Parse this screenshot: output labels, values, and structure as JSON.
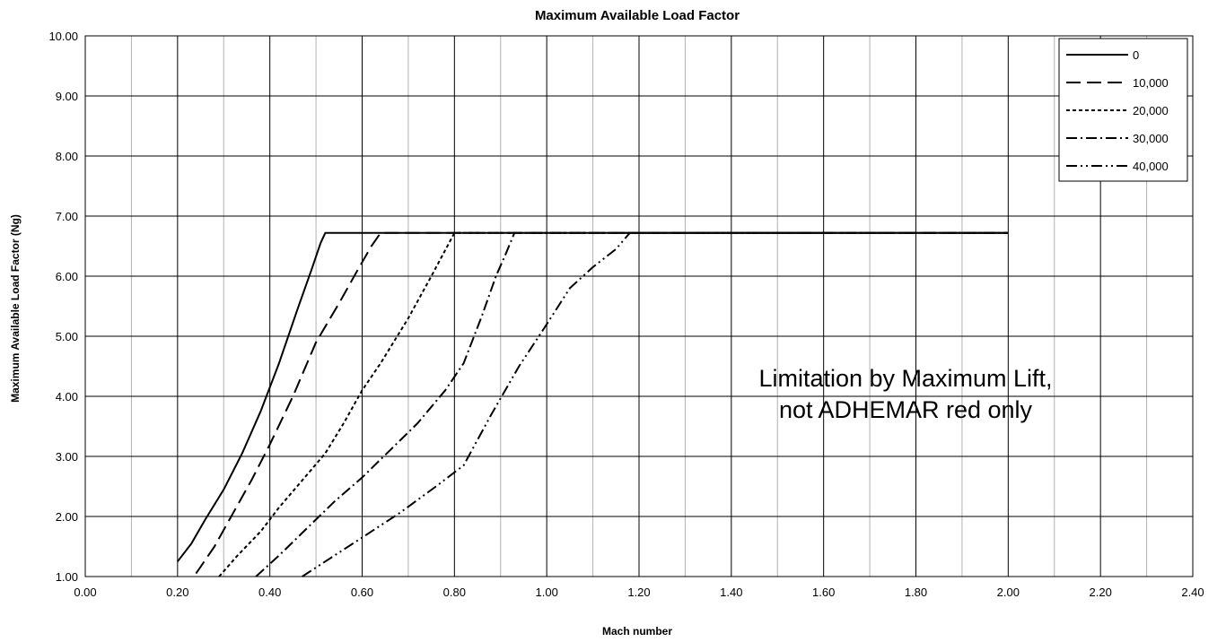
{
  "chart_data": {
    "type": "line",
    "title": "Maximum Available  Load Factor",
    "xlabel": "Mach number",
    "ylabel": "Maximum Available Load  Factor (Ng)",
    "xlim": [
      0,
      2.4
    ],
    "ylim": [
      1,
      10
    ],
    "x_ticks": [
      "0.00",
      "0.20",
      "0.40",
      "0.60",
      "0.80",
      "1.00",
      "1.20",
      "1.40",
      "1.60",
      "1.80",
      "2.00",
      "2.20",
      "2.40"
    ],
    "y_ticks": [
      "1.00",
      "2.00",
      "3.00",
      "4.00",
      "5.00",
      "6.00",
      "7.00",
      "8.00",
      "9.00",
      "10.00"
    ],
    "grid": true,
    "legend_position": "top-right",
    "annotation": [
      "Limitation by Maximum Lift,",
      "not ADHEMAR red only"
    ],
    "series": [
      {
        "name": "0",
        "dash": "solid",
        "points": [
          [
            0.2,
            1.25
          ],
          [
            0.23,
            1.55
          ],
          [
            0.26,
            1.95
          ],
          [
            0.3,
            2.45
          ],
          [
            0.34,
            3.05
          ],
          [
            0.38,
            3.75
          ],
          [
            0.42,
            4.55
          ],
          [
            0.46,
            5.45
          ],
          [
            0.49,
            6.1
          ],
          [
            0.51,
            6.55
          ],
          [
            0.52,
            6.72
          ],
          [
            2.0,
            6.72
          ]
        ]
      },
      {
        "name": "10,000",
        "dash": "long-dash",
        "points": [
          [
            0.24,
            1.05
          ],
          [
            0.28,
            1.5
          ],
          [
            0.32,
            2.05
          ],
          [
            0.36,
            2.6
          ],
          [
            0.4,
            3.2
          ],
          [
            0.45,
            4.0
          ],
          [
            0.5,
            4.9
          ],
          [
            0.55,
            5.55
          ],
          [
            0.59,
            6.1
          ],
          [
            0.62,
            6.5
          ],
          [
            0.64,
            6.72
          ],
          [
            2.0,
            6.72
          ]
        ]
      },
      {
        "name": "20,000",
        "dash": "short-dash",
        "points": [
          [
            0.29,
            1.0
          ],
          [
            0.33,
            1.35
          ],
          [
            0.38,
            1.75
          ],
          [
            0.42,
            2.15
          ],
          [
            0.47,
            2.6
          ],
          [
            0.52,
            3.05
          ],
          [
            0.56,
            3.55
          ],
          [
            0.6,
            4.1
          ],
          [
            0.64,
            4.55
          ],
          [
            0.7,
            5.3
          ],
          [
            0.75,
            6.0
          ],
          [
            0.8,
            6.72
          ],
          [
            2.0,
            6.72
          ]
        ]
      },
      {
        "name": "30,000",
        "dash": "dash-dot",
        "points": [
          [
            0.37,
            1.0
          ],
          [
            0.42,
            1.35
          ],
          [
            0.48,
            1.8
          ],
          [
            0.54,
            2.25
          ],
          [
            0.6,
            2.65
          ],
          [
            0.66,
            3.1
          ],
          [
            0.72,
            3.55
          ],
          [
            0.78,
            4.1
          ],
          [
            0.82,
            4.55
          ],
          [
            0.86,
            5.35
          ],
          [
            0.89,
            6.0
          ],
          [
            0.91,
            6.35
          ],
          [
            0.93,
            6.72
          ],
          [
            2.0,
            6.72
          ]
        ]
      },
      {
        "name": "40,000",
        "dash": "dash-dot-dot",
        "points": [
          [
            0.47,
            1.0
          ],
          [
            0.53,
            1.3
          ],
          [
            0.6,
            1.65
          ],
          [
            0.68,
            2.05
          ],
          [
            0.76,
            2.5
          ],
          [
            0.82,
            2.85
          ],
          [
            0.88,
            3.7
          ],
          [
            0.94,
            4.5
          ],
          [
            1.0,
            5.2
          ],
          [
            1.05,
            5.8
          ],
          [
            1.1,
            6.15
          ],
          [
            1.15,
            6.45
          ],
          [
            1.18,
            6.72
          ],
          [
            2.0,
            6.72
          ]
        ]
      }
    ]
  }
}
